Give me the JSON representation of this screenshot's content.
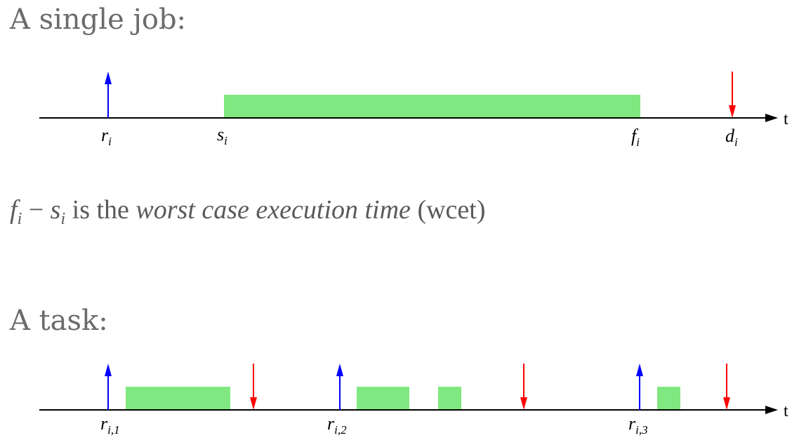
{
  "single_job": {
    "heading": "A single job:",
    "axis_label": "t",
    "labels": {
      "release": {
        "base": "r",
        "sub": "i"
      },
      "start": {
        "base": "s",
        "sub": "i"
      },
      "finish": {
        "base": "f",
        "sub": "i"
      },
      "deadline": {
        "base": "d",
        "sub": "i"
      }
    },
    "release_color": "#0000ff",
    "deadline_color": "#ff0000",
    "block_color": "#80e880"
  },
  "equation": {
    "f": "f",
    "f_sub": "i",
    "minus": " − ",
    "s": "s",
    "s_sub": "i",
    "text_before": " is the ",
    "emphasis": "worst case execution time",
    "text_after": " (wcet)"
  },
  "task": {
    "heading": "A task:",
    "axis_label": "t",
    "releases": [
      {
        "base": "r",
        "sub": "i,1"
      },
      {
        "base": "r",
        "sub": "i,2"
      },
      {
        "base": "r",
        "sub": "i,3"
      }
    ]
  }
}
